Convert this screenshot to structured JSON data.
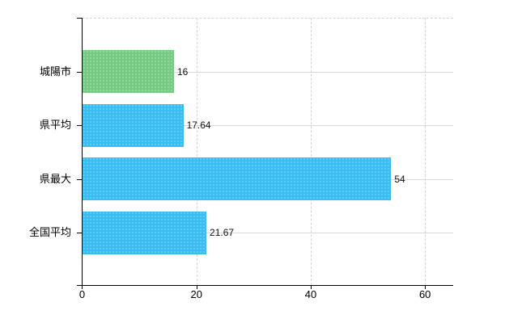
{
  "chart_data": {
    "type": "bar",
    "orientation": "horizontal",
    "title": "",
    "xlabel": "",
    "ylabel": "",
    "categories": [
      "城陽市",
      "県平均",
      "県最大",
      "全国平均"
    ],
    "values": [
      16,
      17.64,
      54,
      21.67
    ],
    "value_labels": [
      "16",
      "17.64",
      "54",
      "21.67"
    ],
    "bar_colors": [
      "#74cb81",
      "#38bdf2",
      "#38bdf2",
      "#38bdf2"
    ],
    "x_ticks": [
      0,
      20,
      40,
      60
    ],
    "x_tick_labels": [
      "0",
      "20",
      "40",
      "60"
    ],
    "xlim": [
      0,
      65
    ],
    "grid": true,
    "legend": false
  },
  "colors": {
    "highlight_bar": "#74cb81",
    "default_bar": "#38bdf2",
    "axis": "#000000",
    "gridline_h": "#d9d9d9",
    "gridline_v": "#d4d4d4",
    "background": "#ffffff",
    "text": "#000000"
  }
}
